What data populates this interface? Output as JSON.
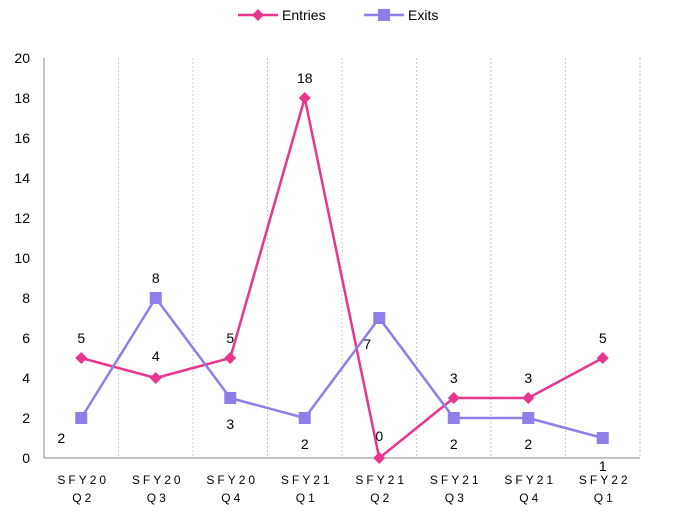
{
  "chart_data": {
    "type": "line",
    "categories": [
      [
        "SFY20",
        "Q2"
      ],
      [
        "SFY20",
        "Q3"
      ],
      [
        "SFY20",
        "Q4"
      ],
      [
        "SFY21",
        "Q1"
      ],
      [
        "SFY21",
        "Q2"
      ],
      [
        "SFY21",
        "Q3"
      ],
      [
        "SFY21",
        "Q4"
      ],
      [
        "SFY22",
        "Q1"
      ]
    ],
    "series": [
      {
        "name": "Entries",
        "values": [
          5,
          4,
          5,
          18,
          0,
          3,
          3,
          5
        ],
        "color": "#e8368f",
        "marker": "diamond"
      },
      {
        "name": "Exits",
        "values": [
          2,
          8,
          3,
          2,
          7,
          2,
          2,
          1
        ],
        "color": "#8f7ee8",
        "marker": "square"
      }
    ],
    "ylim": [
      0,
      20
    ],
    "yticks": [
      "0",
      "2",
      "4",
      "6",
      "8",
      "10",
      "12",
      "14",
      "16",
      "18",
      "20"
    ],
    "grid": "vertical dashed between categories",
    "legend": "top-center"
  }
}
